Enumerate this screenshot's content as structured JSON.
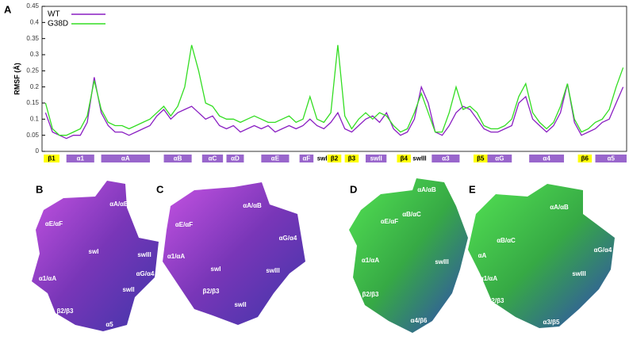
{
  "panel_labels": [
    "A",
    "B",
    "C",
    "D",
    "E"
  ],
  "chart_data": {
    "type": "line",
    "ylabel": "RMSF (Å)",
    "x": [
      1,
      3,
      5,
      7,
      9,
      11,
      13,
      15,
      17,
      19,
      21,
      23,
      25,
      27,
      29,
      31,
      33,
      35,
      37,
      39,
      41,
      43,
      45,
      47,
      49,
      51,
      53,
      55,
      57,
      59,
      61,
      63,
      65,
      67,
      69,
      71,
      73,
      75,
      77,
      79,
      81,
      83,
      85,
      87,
      89,
      91,
      93,
      95,
      97,
      99,
      101,
      103,
      105,
      107,
      109,
      111,
      113,
      115,
      117,
      119,
      121,
      123,
      125,
      127,
      129,
      131,
      133,
      135,
      137,
      139,
      141,
      143,
      145,
      147,
      149,
      151,
      153,
      155,
      157,
      159,
      161,
      163,
      165,
      167
    ],
    "series": [
      {
        "name": "WT",
        "color": "#8a1fc2",
        "values": [
          0.12,
          0.06,
          0.05,
          0.04,
          0.05,
          0.05,
          0.09,
          0.23,
          0.12,
          0.08,
          0.06,
          0.06,
          0.05,
          0.06,
          0.07,
          0.08,
          0.11,
          0.13,
          0.1,
          0.12,
          0.13,
          0.14,
          0.12,
          0.1,
          0.11,
          0.08,
          0.07,
          0.08,
          0.06,
          0.07,
          0.08,
          0.07,
          0.08,
          0.06,
          0.07,
          0.08,
          0.07,
          0.08,
          0.1,
          0.08,
          0.07,
          0.09,
          0.12,
          0.07,
          0.06,
          0.08,
          0.1,
          0.11,
          0.09,
          0.12,
          0.07,
          0.05,
          0.06,
          0.1,
          0.2,
          0.15,
          0.06,
          0.05,
          0.08,
          0.12,
          0.14,
          0.13,
          0.1,
          0.07,
          0.06,
          0.06,
          0.07,
          0.08,
          0.15,
          0.17,
          0.1,
          0.08,
          0.06,
          0.08,
          0.12,
          0.21,
          0.09,
          0.05,
          0.06,
          0.07,
          0.09,
          0.1,
          0.15,
          0.2
        ]
      },
      {
        "name": "G38D",
        "color": "#33dd22",
        "values": [
          0.15,
          0.07,
          0.05,
          0.05,
          0.06,
          0.07,
          0.11,
          0.22,
          0.13,
          0.09,
          0.08,
          0.08,
          0.07,
          0.08,
          0.09,
          0.1,
          0.12,
          0.14,
          0.11,
          0.14,
          0.2,
          0.33,
          0.25,
          0.15,
          0.14,
          0.11,
          0.1,
          0.1,
          0.09,
          0.1,
          0.11,
          0.1,
          0.09,
          0.09,
          0.1,
          0.11,
          0.09,
          0.1,
          0.17,
          0.1,
          0.09,
          0.12,
          0.33,
          0.11,
          0.07,
          0.1,
          0.12,
          0.1,
          0.12,
          0.11,
          0.08,
          0.06,
          0.07,
          0.12,
          0.18,
          0.12,
          0.06,
          0.06,
          0.12,
          0.2,
          0.13,
          0.14,
          0.12,
          0.08,
          0.07,
          0.07,
          0.08,
          0.1,
          0.17,
          0.21,
          0.12,
          0.09,
          0.07,
          0.09,
          0.14,
          0.21,
          0.1,
          0.06,
          0.07,
          0.09,
          0.1,
          0.13,
          0.2,
          0.26
        ]
      }
    ],
    "xlim": [
      0,
      168
    ],
    "ylim": [
      0,
      0.45
    ],
    "yticks": [
      0,
      0.05,
      0.1,
      0.15,
      0.2,
      0.25,
      0.3,
      0.35,
      0.4,
      0.45
    ],
    "legend": "upper left"
  },
  "secondary_structure": [
    {
      "label": "β1",
      "start": 0.5,
      "end": 5,
      "color": "#ffff00"
    },
    {
      "label": "α1",
      "start": 7,
      "end": 15,
      "color": "#9966cc"
    },
    {
      "label": "αA",
      "start": 17,
      "end": 31,
      "color": "#9966cc"
    },
    {
      "label": "αB",
      "start": 35,
      "end": 43,
      "color": "#9966cc"
    },
    {
      "label": "αC",
      "start": 46,
      "end": 52,
      "color": "#9966cc"
    },
    {
      "label": "αD",
      "start": 53,
      "end": 58,
      "color": "#9966cc"
    },
    {
      "label": "αE",
      "start": 63,
      "end": 71,
      "color": "#9966cc"
    },
    {
      "label": "αF",
      "start": 74,
      "end": 78,
      "color": "#9966cc"
    },
    {
      "label": "swI",
      "start": 79,
      "end": 82
    },
    {
      "label": "β2",
      "start": 82,
      "end": 86,
      "color": "#ffff00"
    },
    {
      "label": "β3",
      "start": 87,
      "end": 91,
      "color": "#ffff00"
    },
    {
      "label": "swII",
      "start": 93,
      "end": 99,
      "color": "#9966cc"
    },
    {
      "label": "β4",
      "start": 102,
      "end": 106,
      "color": "#ffff00"
    },
    {
      "label": "swIII",
      "start": 106,
      "end": 111
    },
    {
      "label": "α3",
      "start": 112,
      "end": 120,
      "color": "#9966cc"
    },
    {
      "label": "β5",
      "start": 124,
      "end": 128,
      "color": "#ffff00"
    },
    {
      "label": "αG",
      "start": 128,
      "end": 135,
      "color": "#9966cc"
    },
    {
      "label": "α4",
      "start": 140,
      "end": 150,
      "color": "#9966cc"
    },
    {
      "label": "β6",
      "start": 154,
      "end": 158,
      "color": "#ffff00"
    },
    {
      "label": "α5",
      "start": 159,
      "end": 168,
      "color": "#9966cc"
    }
  ],
  "structures": [
    {
      "labels": [
        "αA/αB",
        "αE/αF",
        "swI",
        "swIII",
        "αG/α4",
        "α1/αA",
        "swII",
        "β2/β3",
        "α5"
      ]
    },
    {
      "labels": [
        "αA/αB",
        "αE/αF",
        "αG/α4",
        "α1/αA",
        "swI",
        "swIII",
        "β2/β3",
        "swII"
      ]
    },
    {
      "labels": [
        "αA/αB",
        "αB/αC",
        "αE/αF",
        "α1/αA",
        "swIII",
        "β2/β3",
        "α4/β6"
      ]
    },
    {
      "labels": [
        "αA/αB",
        "αB/αC",
        "αG/α4",
        "αA",
        "α1/αA",
        "swIII",
        "β2/β3",
        "α3/β5"
      ]
    }
  ]
}
